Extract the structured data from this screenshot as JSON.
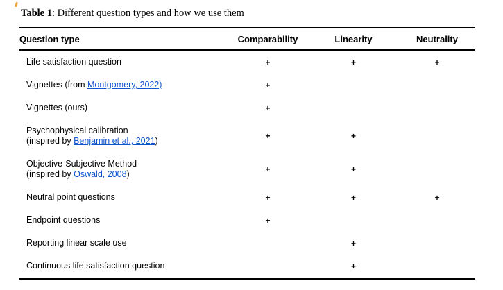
{
  "caption": {
    "label": "Table 1",
    "rest": ": Different question types and how we use them"
  },
  "colors": {
    "text": "#000000",
    "rule": "#000000",
    "link": "#1155cc",
    "artifact_mark": "#eaa63d",
    "background": "#ffffff"
  },
  "table": {
    "plus_symbol": "+",
    "columns": [
      "Question type",
      "Comparability",
      "Linearity",
      "Neutrality"
    ],
    "rows": [
      {
        "lines": [
          [
            {
              "text": "Life satisfaction question"
            }
          ]
        ],
        "marks": [
          true,
          true,
          true
        ]
      },
      {
        "lines": [
          [
            {
              "text": "Vignettes (from "
            },
            {
              "text": "Montgomery, 2022)",
              "link": true
            }
          ]
        ],
        "marks": [
          true,
          false,
          false
        ]
      },
      {
        "lines": [
          [
            {
              "text": "Vignettes (ours)"
            }
          ]
        ],
        "marks": [
          true,
          false,
          false
        ]
      },
      {
        "lines": [
          [
            {
              "text": "Psychophysical calibration"
            }
          ],
          [
            {
              "text": "(inspired by "
            },
            {
              "text": "Benjamin et al., 2021",
              "link": true
            },
            {
              "text": ")"
            }
          ]
        ],
        "marks": [
          true,
          true,
          false
        ]
      },
      {
        "lines": [
          [
            {
              "text": "Objective-Subjective Method"
            }
          ],
          [
            {
              "text": "(inspired by "
            },
            {
              "text": "Oswald, 2008",
              "link": true
            },
            {
              "text": ")"
            }
          ]
        ],
        "marks": [
          true,
          true,
          false
        ]
      },
      {
        "lines": [
          [
            {
              "text": "Neutral point questions"
            }
          ]
        ],
        "marks": [
          true,
          true,
          true
        ]
      },
      {
        "lines": [
          [
            {
              "text": "Endpoint questions"
            }
          ]
        ],
        "marks": [
          true,
          false,
          false
        ]
      },
      {
        "lines": [
          [
            {
              "text": "Reporting linear scale use"
            }
          ]
        ],
        "marks": [
          false,
          true,
          false
        ]
      },
      {
        "lines": [
          [
            {
              "text": "Continuous life satisfaction question"
            }
          ]
        ],
        "marks": [
          false,
          true,
          false
        ]
      }
    ]
  }
}
